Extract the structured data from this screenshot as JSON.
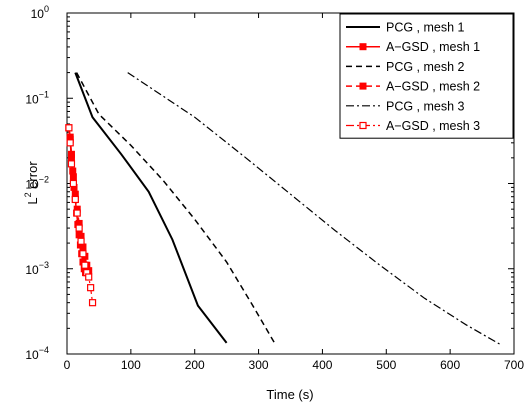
{
  "chart_data": {
    "type": "line",
    "xlabel": "Time (s)",
    "ylabel_base": "L",
    "ylabel_sup": "2",
    "ylabel_rest": " error",
    "xlim": [
      0,
      700
    ],
    "ylim": [
      0.0001,
      1
    ],
    "yscale": "log",
    "xticks": [
      0,
      100,
      200,
      300,
      400,
      500,
      600,
      700
    ],
    "yticks": [
      {
        "value": 0.0001,
        "base": "10",
        "exp": "−4"
      },
      {
        "value": 0.001,
        "base": "10",
        "exp": "−3"
      },
      {
        "value": 0.01,
        "base": "10",
        "exp": "−2"
      },
      {
        "value": 0.1,
        "base": "10",
        "exp": "−1"
      },
      {
        "value": 1,
        "base": "10",
        "exp": "0"
      }
    ],
    "grid": false,
    "legend_position": "top-right",
    "series": [
      {
        "name": "PCG , mesh 1",
        "color": "#000000",
        "dash": "",
        "marker": "none",
        "width": 2,
        "x": [
          13,
          40,
          85,
          128,
          165,
          205,
          250
        ],
        "y": [
          0.2,
          0.06,
          0.022,
          0.008,
          0.0022,
          0.00037,
          0.000135
        ]
      },
      {
        "name": "A−GSD , mesh 1",
        "color": "#ff0000",
        "dash": "",
        "marker": "square-filled",
        "width": 1.5,
        "x": [
          3,
          5,
          7,
          9,
          11,
          13,
          15,
          17,
          19,
          21,
          23,
          25,
          27,
          29
        ],
        "y": [
          0.045,
          0.035,
          0.022,
          0.014,
          0.009,
          0.0065,
          0.0045,
          0.0033,
          0.0025,
          0.0019,
          0.0015,
          0.0012,
          0.001,
          0.0009
        ]
      },
      {
        "name": "PCG , mesh 2",
        "color": "#000000",
        "dash": "6,4",
        "marker": "none",
        "width": 1.5,
        "x": [
          15,
          50,
          100,
          150,
          200,
          250,
          290,
          325
        ],
        "y": [
          0.2,
          0.065,
          0.028,
          0.011,
          0.0038,
          0.0012,
          0.00038,
          0.000135
        ]
      },
      {
        "name": "A−GSD , mesh 2",
        "color": "#ff0000",
        "dash": "6,4",
        "marker": "square-filled",
        "width": 1.5,
        "x": [
          3,
          5,
          7,
          10,
          13,
          16,
          19,
          22,
          25,
          28,
          31,
          34
        ],
        "y": [
          0.045,
          0.033,
          0.02,
          0.012,
          0.0075,
          0.005,
          0.0034,
          0.0024,
          0.0018,
          0.0014,
          0.0011,
          0.00095
        ]
      },
      {
        "name": "PCG , mesh 3",
        "color": "#000000",
        "dash": "8,3,2,3",
        "marker": "none",
        "width": 1.2,
        "x": [
          95,
          200,
          280,
          350,
          420,
          490,
          560,
          625,
          678
        ],
        "y": [
          0.2,
          0.06,
          0.02,
          0.0075,
          0.0028,
          0.0011,
          0.00045,
          0.00022,
          0.00013
        ]
      },
      {
        "name": "A−GSD , mesh 3",
        "color": "#ff0000",
        "dash": "8,3,2,3",
        "marker": "square-open",
        "width": 1.2,
        "x": [
          3,
          5,
          7,
          10,
          13,
          16,
          19,
          22,
          25,
          28,
          31,
          34,
          37,
          40
        ],
        "y": [
          0.045,
          0.03,
          0.017,
          0.01,
          0.0065,
          0.0045,
          0.003,
          0.0021,
          0.0015,
          0.0011,
          0.0009,
          0.0008,
          0.0006,
          0.0004
        ]
      }
    ]
  }
}
